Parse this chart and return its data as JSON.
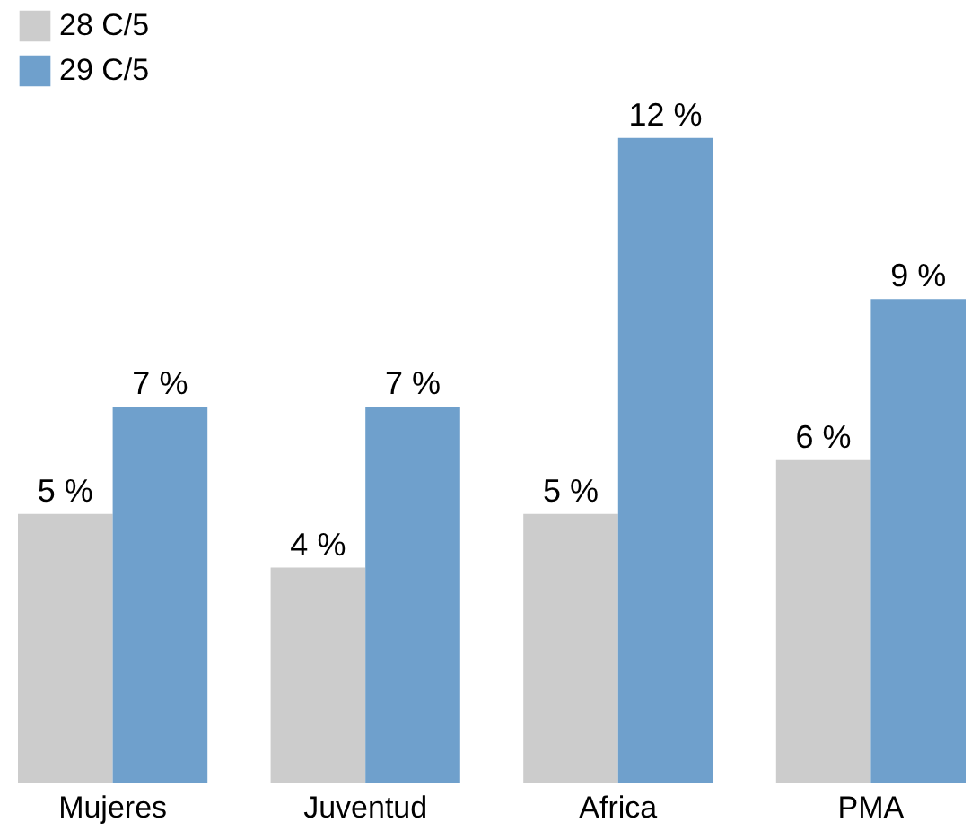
{
  "chart_data": {
    "type": "bar",
    "categories": [
      "Mujeres",
      "Juventud",
      "Africa",
      "PMA"
    ],
    "series": [
      {
        "name": "28 C/5",
        "color": "#cccccc",
        "values": [
          5,
          4,
          5,
          6
        ],
        "value_labels": [
          "5 %",
          "4 %",
          "5 %",
          "6 %"
        ]
      },
      {
        "name": "29 C/5",
        "color": "#6fa0cc",
        "values": [
          7,
          7,
          12,
          9
        ],
        "value_labels": [
          "7 %",
          "7 %",
          "12 %",
          "9 %"
        ]
      }
    ],
    "data_labels": true,
    "legend": "top left",
    "grid": false
  }
}
